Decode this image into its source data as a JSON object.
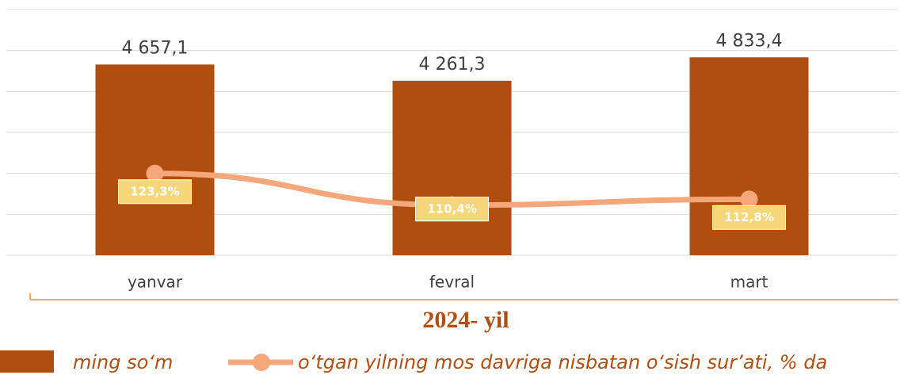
{
  "chart_data": {
    "type": "bar",
    "categories": [
      "yanvar",
      "fevral",
      "mart"
    ],
    "x_label": "2024- yil",
    "ylim": [
      0,
      6000
    ],
    "yticks": [
      0,
      1000,
      2000,
      3000,
      4000,
      5000,
      6000
    ],
    "grid": true,
    "y2lim": [
      90,
      190
    ],
    "series": [
      {
        "name": "ming so‘m",
        "type": "bar",
        "color": "#b04e10",
        "values": [
          4657.1,
          4261.3,
          4833.4
        ],
        "value_labels": [
          "4 657,1",
          "4 261,3",
          "4 833,4"
        ]
      },
      {
        "name": "o‘tgan yilning mos davriga nisbatan o‘sish sur’ati, % da",
        "type": "line",
        "axis": "y2",
        "color": "#f4a77a",
        "values": [
          123.3,
          110.4,
          112.8
        ],
        "value_labels": [
          "123,3%",
          "110,4%",
          "112,8%"
        ],
        "label_color": "#f5d77a"
      }
    ],
    "legend": "bottom"
  }
}
